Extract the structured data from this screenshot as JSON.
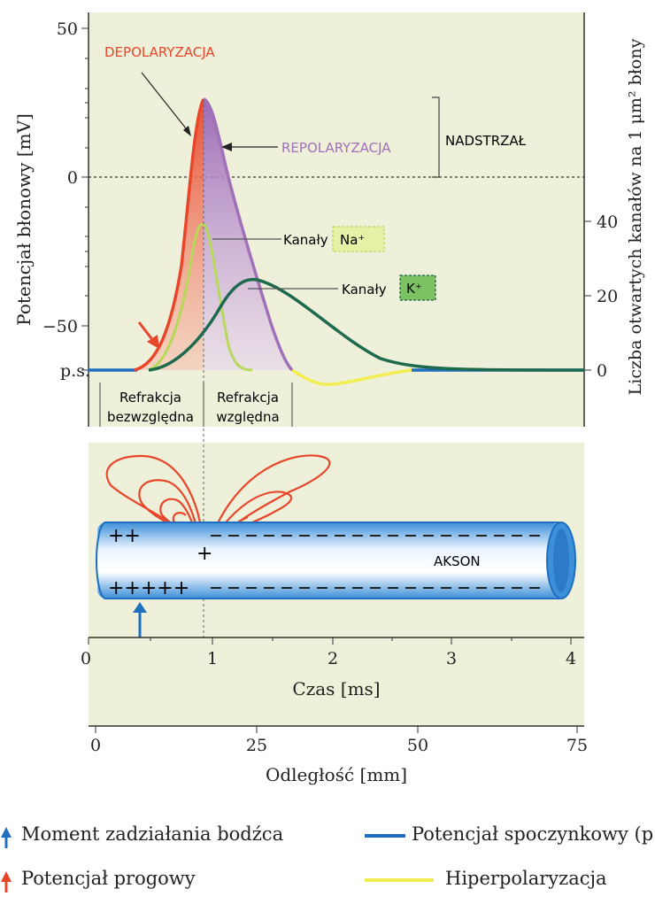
{
  "top_chart": {
    "ylabel_left": "Potencjał błonowy [mV]",
    "ylabel_right": "Liczba otwartych kanałów na 1 μm² błony",
    "left_ticks": [
      "50",
      "0",
      "−50",
      "p.s."
    ],
    "right_ticks": [
      "40",
      "20",
      "0"
    ],
    "labels": {
      "depolarization": "DEPOLARYZACJA",
      "repolarization": "REPOLARYZACJA",
      "overshoot": "NADSTRZAŁ",
      "na_channels": "Kanały",
      "na_ion": "Na⁺",
      "k_channels": "Kanały",
      "k_ion": "K⁺",
      "refr_abs_1": "Refrakcja",
      "refr_abs_2": "bezwzględna",
      "refr_rel_1": "Refrakcja",
      "refr_rel_2": "względna"
    }
  },
  "bottom_panel": {
    "axon_label": "AKSON",
    "charges_top": "++",
    "charges_bottom": "+++++",
    "charge_mid": "+"
  },
  "time_axis": {
    "ticks": [
      "0",
      "1",
      "2",
      "3",
      "4"
    ],
    "label": "Czas [ms]"
  },
  "distance_axis": {
    "ticks": [
      "0",
      "25",
      "50",
      "75"
    ],
    "label": "Odległość [mm]"
  },
  "legend": {
    "stimulus": "Moment zadziałania bodźca",
    "threshold": "Potencjał progowy",
    "resting": "Potencjał spoczynkowy (p.s.)",
    "hyperpolarization": "Hiperpolaryzacja"
  },
  "colors": {
    "panel_bg": "#eef0da",
    "red": "#e8462a",
    "purple": "#a070b8",
    "green_light": "#b8d85a",
    "green_dark": "#1e6a4e",
    "blue": "#1f6fc0",
    "yellow": "#f2ee52"
  }
}
